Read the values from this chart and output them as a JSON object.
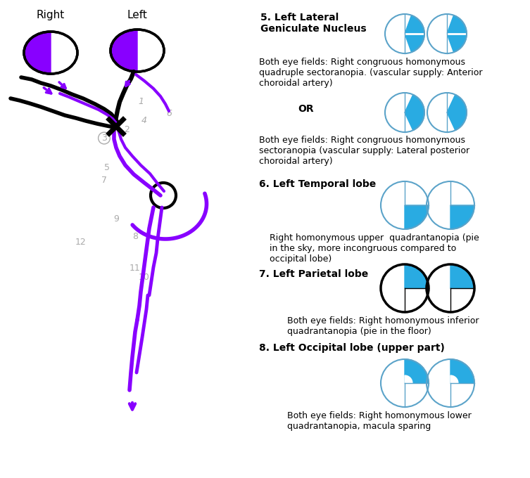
{
  "right_label": "Right",
  "left_label": "Left",
  "section5_title": "5. Left Lateral\nGeniculate Nucleus",
  "section5_desc": "Both eye fields: Right congruous homonymous\nquadruple sectoranopia. (vascular supply: Anterior\nchoroidal artery)",
  "or_label": "OR",
  "section5_desc2": "Both eye fields: Right congruous homonymous\nsectoranopia (vascular supply: Lateral posterior\nchoroidal artery)",
  "section6_title": "6. Left Temporal lobe",
  "section6_desc": "Right homonymous upper  quadrantanopia (pie\nin the sky, more incongruous compared to\noccipital lobe)",
  "section7_title": "7. Left Parietal lobe",
  "section7_desc": "Both eye fields: Right homonymous inferior\nquadrantanopia (pie in the floor)",
  "section8_title": "8. Left Occipital lobe (upper part)",
  "section8_desc": "Both eye fields: Right homonymous lower\nquadrantanopia, macula sparing",
  "purple": "#8800FF",
  "blue": "#29ABE2",
  "black": "#000000",
  "gray": "#AAAAAA",
  "light_blue_circle": "#5BA3C9",
  "figw": 7.53,
  "figh": 6.8,
  "dpi": 100
}
